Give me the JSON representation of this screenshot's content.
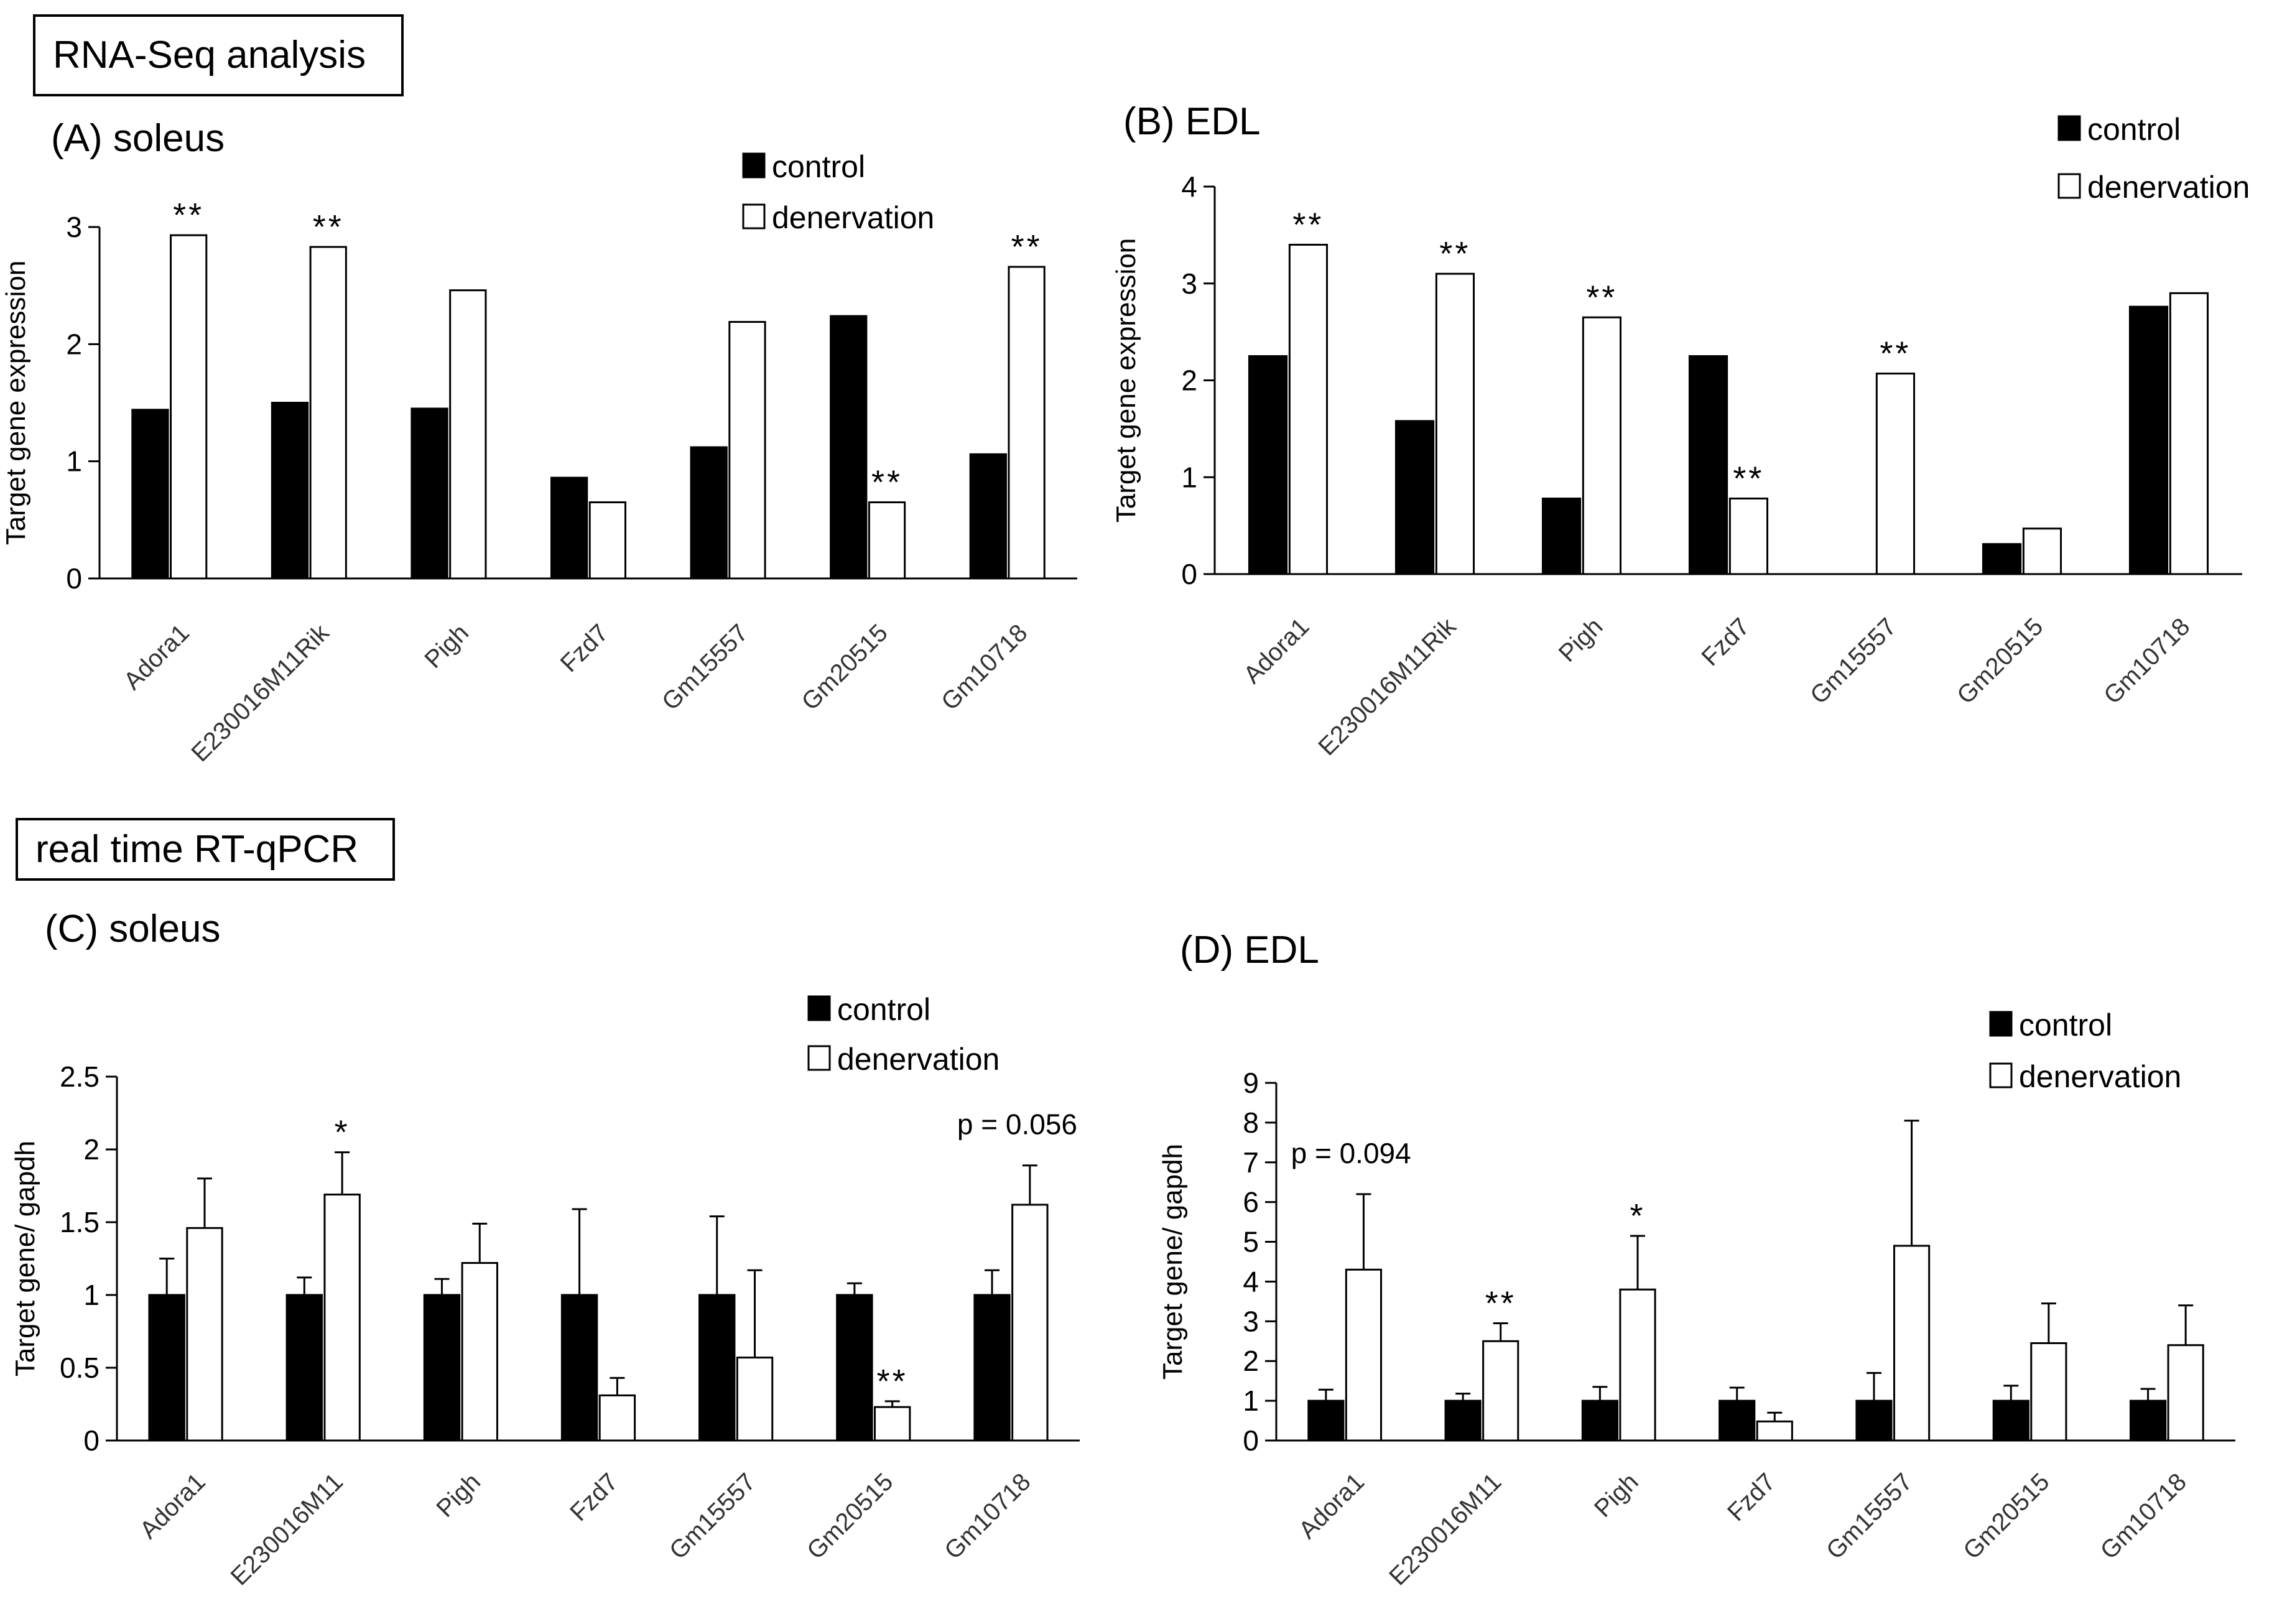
{
  "sections": {
    "rnaseq": "RNA-Seq analysis",
    "qpcr": "real time RT-qPCR"
  },
  "legend": {
    "control": "control",
    "denervation": "denervation"
  },
  "colors": {
    "control": "#000000",
    "denervation": "#ffffff",
    "axis": "#000000"
  },
  "chart_data": [
    {
      "id": "A",
      "title": "(A) soleus",
      "type": "bar",
      "ylabel": "Target gene expression",
      "xlabel": "",
      "ylim": [
        0,
        3
      ],
      "yticks": [
        0,
        1,
        2,
        3
      ],
      "tick_format": "int",
      "categories": [
        "Adora1",
        "E230016M11Rik",
        "Pigh",
        "Fzd7",
        "Gm15557",
        "Gm20515",
        "Gm10718"
      ],
      "series": [
        {
          "name": "control",
          "values": [
            1.44,
            1.5,
            1.45,
            0.86,
            1.12,
            2.24,
            1.06
          ]
        },
        {
          "name": "denervation",
          "values": [
            2.93,
            2.83,
            2.46,
            0.65,
            2.19,
            0.65,
            2.66
          ]
        }
      ],
      "errors": null,
      "annotations": [
        {
          "category": 0,
          "series": 1,
          "text": "**"
        },
        {
          "category": 1,
          "series": 1,
          "text": "**"
        },
        {
          "category": 5,
          "series": 1,
          "text": "**"
        },
        {
          "category": 6,
          "series": 1,
          "text": "**"
        }
      ],
      "notes": []
    },
    {
      "id": "B",
      "title": "(B) EDL",
      "type": "bar",
      "ylabel": "Target gene expression",
      "xlabel": "",
      "ylim": [
        0,
        4
      ],
      "yticks": [
        0,
        1,
        2,
        3,
        4
      ],
      "tick_format": "int",
      "categories": [
        "Adora1",
        "E230016M11Rik",
        "Pigh",
        "Fzd7",
        "Gm15557",
        "Gm20515",
        "Gm10718"
      ],
      "series": [
        {
          "name": "control",
          "values": [
            2.25,
            1.58,
            0.78,
            2.25,
            0,
            0.31,
            2.76
          ]
        },
        {
          "name": "denervation",
          "values": [
            3.4,
            3.1,
            2.65,
            0.78,
            2.07,
            0.47,
            2.9
          ]
        }
      ],
      "errors": null,
      "annotations": [
        {
          "category": 0,
          "series": 1,
          "text": "**"
        },
        {
          "category": 1,
          "series": 1,
          "text": "**"
        },
        {
          "category": 2,
          "series": 1,
          "text": "**"
        },
        {
          "category": 3,
          "series": 1,
          "text": "**"
        },
        {
          "category": 4,
          "series": 1,
          "text": "**"
        }
      ],
      "notes": []
    },
    {
      "id": "C",
      "title": "(C) soleus",
      "type": "bar",
      "ylabel": "Target gene/ gapdh",
      "xlabel": "",
      "ylim": [
        0,
        2.5
      ],
      "yticks": [
        0,
        0.5,
        1,
        1.5,
        2,
        2.5
      ],
      "tick_format": "dec",
      "categories": [
        "Adora1",
        "E230016M11",
        "Pigh",
        "Fzd7",
        "Gm15557",
        "Gm20515",
        "Gm10718"
      ],
      "series": [
        {
          "name": "control",
          "values": [
            1,
            1,
            1,
            1,
            1,
            1,
            1
          ]
        },
        {
          "name": "denervation",
          "values": [
            1.46,
            1.69,
            1.22,
            0.31,
            0.57,
            0.23,
            1.62
          ]
        }
      ],
      "errors": [
        [
          0.25,
          0.12,
          0.11,
          0.59,
          0.54,
          0.08,
          0.17
        ],
        [
          0.34,
          0.29,
          0.27,
          0.12,
          0.6,
          0.04,
          0.27
        ]
      ],
      "annotations": [
        {
          "category": 1,
          "series": 1,
          "text": "*"
        },
        {
          "category": 5,
          "series": 1,
          "text": "**"
        }
      ],
      "notes": [
        {
          "text": "p = 0.056",
          "category": 6
        }
      ]
    },
    {
      "id": "D",
      "title": "(D) EDL",
      "type": "bar",
      "ylabel": "Target gene/ gapdh",
      "xlabel": "",
      "ylim": [
        0,
        9
      ],
      "yticks": [
        0,
        1,
        2,
        3,
        4,
        5,
        6,
        7,
        8,
        9
      ],
      "tick_format": "int",
      "categories": [
        "Adora1",
        "E230016M11",
        "Pigh",
        "Fzd7",
        "Gm15557",
        "Gm20515",
        "Gm10718"
      ],
      "series": [
        {
          "name": "control",
          "values": [
            1,
            1,
            1,
            1,
            1,
            1,
            1
          ]
        },
        {
          "name": "denervation",
          "values": [
            4.3,
            2.5,
            3.8,
            0.48,
            4.9,
            2.45,
            2.4
          ]
        }
      ],
      "errors": [
        [
          0.28,
          0.18,
          0.35,
          0.33,
          0.7,
          0.38,
          0.3
        ],
        [
          1.9,
          0.45,
          1.35,
          0.22,
          3.15,
          1.0,
          1.0
        ]
      ],
      "annotations": [
        {
          "category": 1,
          "series": 1,
          "text": "**"
        },
        {
          "category": 2,
          "series": 1,
          "text": "*"
        }
      ],
      "notes": [
        {
          "text": "p = 0.094",
          "category": 0
        }
      ]
    }
  ]
}
